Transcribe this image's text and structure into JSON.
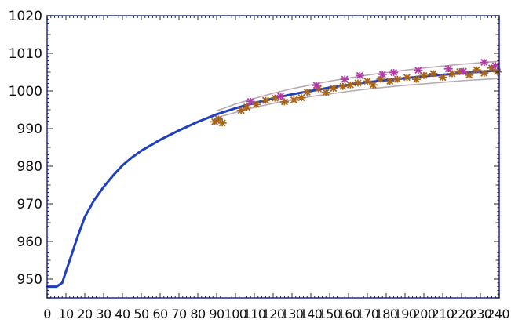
{
  "chart_data": {
    "type": "line",
    "title": "",
    "xlabel": "",
    "ylabel": "",
    "xlim": [
      0,
      240
    ],
    "ylim": [
      945,
      1020
    ],
    "x_ticks": [
      0,
      10,
      20,
      30,
      40,
      50,
      60,
      70,
      80,
      90,
      100,
      110,
      120,
      130,
      140,
      150,
      160,
      170,
      180,
      190,
      200,
      210,
      220,
      230,
      240
    ],
    "x_tick_labels": [
      "0",
      "10",
      "20",
      "30",
      "40",
      "50",
      "60",
      "70",
      "80",
      "90",
      "100",
      "110",
      "120",
      "130",
      "140",
      "150",
      "160",
      "170",
      "180",
      "190",
      "200",
      "210",
      "220",
      "230",
      "240"
    ],
    "y_ticks": [
      950,
      960,
      970,
      980,
      990,
      1000,
      1010,
      1020
    ],
    "y_tick_labels": [
      "950",
      "960",
      "970",
      "980",
      "990",
      "1000",
      "1010",
      "1020"
    ],
    "grid": false,
    "frame_color": "#2a3aa8",
    "series": [
      {
        "kind": "line",
        "color": "#1e3fbf",
        "x": [
          0,
          5,
          8,
          12,
          16,
          20,
          25,
          30,
          35,
          40,
          45,
          50,
          60,
          70,
          80,
          90,
          100,
          110,
          120,
          130,
          140,
          150,
          160,
          170,
          180,
          190,
          200,
          210,
          220,
          230,
          240
        ],
        "y": [
          948,
          948,
          949,
          955,
          961,
          966.5,
          971,
          974.5,
          977.5,
          980.2,
          982.3,
          984.1,
          987,
          989.5,
          991.8,
          993.8,
          995.4,
          996.8,
          998,
          999.1,
          1000,
          1000.9,
          1001.6,
          1002.3,
          1002.9,
          1003.4,
          1003.9,
          1004.3,
          1004.7,
          1005.1,
          1005.5
        ]
      },
      {
        "kind": "line",
        "color": "#b9a9b6",
        "x": [
          90,
          100,
          110,
          120,
          130,
          140,
          150,
          160,
          170,
          180,
          190,
          200,
          210,
          220,
          230,
          240
        ],
        "y": [
          994.7,
          996.5,
          998,
          999.4,
          1000.6,
          1001.6,
          1002.6,
          1003.4,
          1004.2,
          1004.9,
          1005.5,
          1006.1,
          1006.6,
          1007.1,
          1007.5,
          1007.9
        ]
      },
      {
        "kind": "line",
        "color": "#b9a9b6",
        "x": [
          90,
          100,
          110,
          120,
          130,
          140,
          150,
          160,
          170,
          180,
          190,
          200,
          210,
          220,
          230,
          240
        ],
        "y": [
          992.9,
          994.3,
          995.6,
          996.7,
          997.6,
          998.5,
          999.2,
          999.9,
          1000.5,
          1001,
          1001.5,
          1001.9,
          1002.3,
          1002.7,
          1003,
          1003.3
        ]
      },
      {
        "kind": "scatter",
        "color": "#a8641a",
        "marker": "asterisk",
        "x": [
          89,
          91,
          93,
          103,
          106,
          111,
          116,
          121,
          126,
          131,
          135,
          138,
          144,
          148,
          152,
          157,
          161,
          165,
          170,
          173,
          177,
          182,
          186,
          191,
          196,
          200,
          205,
          210,
          215,
          219,
          224,
          228,
          232,
          236,
          239
        ],
        "y": [
          991.8,
          992.5,
          991.5,
          994.8,
          995.7,
          996.4,
          997.5,
          998.1,
          997.1,
          997.6,
          998.2,
          999.7,
          1000.6,
          999.6,
          1000.7,
          1001.2,
          1001.6,
          1002.1,
          1002.6,
          1001.6,
          1003.1,
          1002.6,
          1003.1,
          1003.6,
          1003.1,
          1004.1,
          1004.6,
          1003.6,
          1004.6,
          1005.1,
          1004.2,
          1005.6,
          1004.7,
          1006.1,
          1005.1
        ]
      },
      {
        "kind": "scatter",
        "color": "#b23da8",
        "marker": "asterisk",
        "x": [
          108,
          124,
          143,
          158,
          166,
          178,
          184,
          197,
          213,
          221,
          232,
          238
        ],
        "y": [
          997.2,
          998.6,
          1001.5,
          1003.1,
          1004.1,
          1004.4,
          1004.9,
          1005.5,
          1005.9,
          1005.2,
          1007.6,
          1006.7
        ]
      }
    ]
  }
}
